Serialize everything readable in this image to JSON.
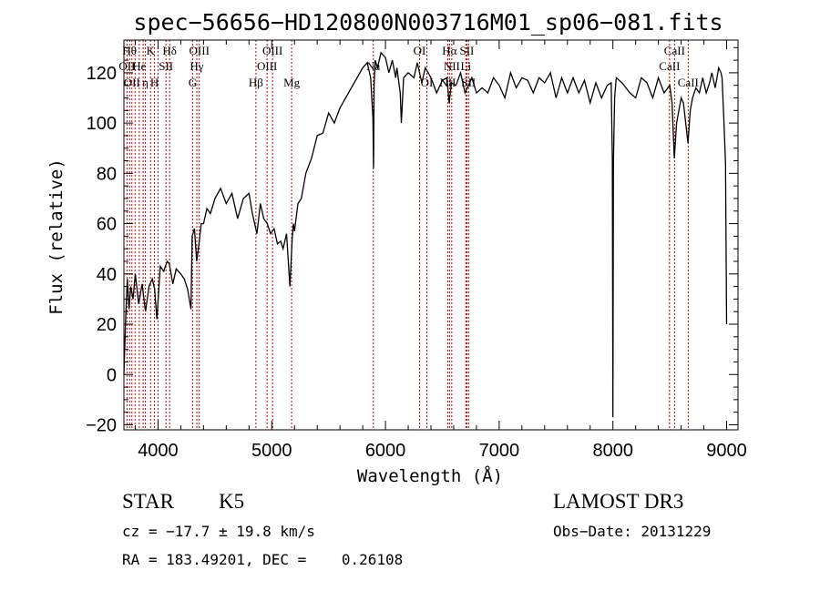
{
  "chart_data": {
    "type": "line",
    "title": "spec−56656−HD120800N003716M01_sp06−081.fits",
    "xlabel": "Wavelength (Å)",
    "ylabel": "Flux (relative)",
    "xlim": [
      3700,
      9100
    ],
    "ylim": [
      -22,
      133
    ],
    "xticks": [
      4000,
      5000,
      6000,
      7000,
      8000,
      9000
    ],
    "yticks": [
      -20,
      0,
      20,
      40,
      60,
      80,
      100,
      120
    ],
    "ytick_labels": [
      "−20",
      "0",
      "20",
      "40",
      "60",
      "80",
      "100",
      "120"
    ],
    "grid": false,
    "series": [
      {
        "color": "#000000",
        "x": [
          3700,
          3715,
          3730,
          3745,
          3760,
          3780,
          3800,
          3830,
          3860,
          3890,
          3920,
          3950,
          3970,
          3990,
          4020,
          4050,
          4080,
          4100,
          4130,
          4160,
          4200,
          4230,
          4260,
          4290,
          4300,
          4320,
          4340,
          4360,
          4380,
          4400,
          4430,
          4460,
          4500,
          4550,
          4600,
          4650,
          4700,
          4750,
          4800,
          4830,
          4850,
          4870,
          4900,
          4930,
          4960,
          4990,
          5020,
          5050,
          5080,
          5100,
          5130,
          5160,
          5180,
          5190,
          5200,
          5230,
          5260,
          5300,
          5350,
          5400,
          5450,
          5500,
          5550,
          5600,
          5650,
          5700,
          5750,
          5800,
          5840,
          5870,
          5890,
          5895,
          5900,
          5910,
          5930,
          5960,
          6000,
          6030,
          6060,
          6090,
          6100,
          6130,
          6140,
          6160,
          6200,
          6250,
          6280,
          6300,
          6320,
          6350,
          6400,
          6450,
          6500,
          6540,
          6560,
          6580,
          6620,
          6660,
          6700,
          6720,
          6760,
          6800,
          6850,
          6900,
          6950,
          7000,
          7050,
          7100,
          7150,
          7200,
          7250,
          7300,
          7350,
          7400,
          7450,
          7500,
          7550,
          7600,
          7650,
          7700,
          7750,
          7800,
          7850,
          7900,
          7950,
          7985,
          7995,
          8000,
          8005,
          8015,
          8030,
          8080,
          8150,
          8200,
          8250,
          8300,
          8350,
          8400,
          8450,
          8500,
          8520,
          8540,
          8560,
          8600,
          8620,
          8640,
          8660,
          8680,
          8700,
          8730,
          8760,
          8790,
          8820,
          8850,
          8870,
          8900,
          8930,
          8950,
          8960,
          8975,
          8990,
          9000
        ],
        "y": [
          0,
          22,
          38,
          26,
          35,
          30,
          40,
          28,
          36,
          25,
          35,
          38,
          34,
          22,
          43,
          41,
          45,
          44,
          36,
          42,
          40,
          38,
          34,
          26,
          55,
          58,
          45,
          52,
          60,
          60,
          66,
          64,
          70,
          74,
          68,
          72,
          62,
          70,
          72,
          64,
          60,
          56,
          68,
          62,
          60,
          56,
          58,
          52,
          53,
          50,
          56,
          35,
          54,
          60,
          57,
          68,
          70,
          80,
          86,
          95,
          96,
          104,
          100,
          106,
          110,
          114,
          118,
          122,
          124,
          118,
          102,
          82,
          115,
          125,
          122,
          128,
          126,
          120,
          125,
          118,
          122,
          112,
          100,
          118,
          120,
          118,
          124,
          120,
          116,
          122,
          118,
          112,
          117,
          118,
          108,
          116,
          115,
          120,
          112,
          114,
          118,
          112,
          114,
          112,
          118,
          115,
          110,
          120,
          114,
          118,
          117,
          112,
          118,
          116,
          120,
          110,
          118,
          112,
          118,
          112,
          117,
          108,
          116,
          110,
          115,
          116,
          85,
          -17,
          85,
          110,
          118,
          116,
          112,
          110,
          118,
          116,
          110,
          118,
          112,
          115,
          108,
          86,
          100,
          110,
          108,
          100,
          92,
          105,
          110,
          114,
          112,
          118,
          112,
          116,
          120,
          114,
          122,
          120,
          118,
          102,
          84,
          20
        ]
      }
    ],
    "line_markers": [
      {
        "x": 3727,
        "label": "OII",
        "row": 1
      },
      {
        "x": 3750,
        "label": "Hθ",
        "row": 0
      },
      {
        "x": 3770,
        "label": "OII",
        "row": 2
      },
      {
        "x": 3798,
        "label": "",
        "row": 0
      },
      {
        "x": 3835,
        "label": "He",
        "row": 1
      },
      {
        "x": 3869,
        "label": "",
        "row": 0
      },
      {
        "x": 3889,
        "label": "η",
        "row": 2
      },
      {
        "x": 3934,
        "label": "K",
        "row": 0
      },
      {
        "x": 3969,
        "label": "H",
        "row": 2
      },
      {
        "x": 4000,
        "label": "",
        "row": 0
      },
      {
        "x": 4070,
        "label": "SII",
        "row": 1
      },
      {
        "x": 4102,
        "label": "Hδ",
        "row": 0
      },
      {
        "x": 4304,
        "label": "G",
        "row": 2
      },
      {
        "x": 4341,
        "label": "Hγ",
        "row": 1
      },
      {
        "x": 4363,
        "label": "OIII",
        "row": 0
      },
      {
        "x": 4861,
        "label": "Hβ",
        "row": 2
      },
      {
        "x": 4959,
        "label": "OIII",
        "row": 1
      },
      {
        "x": 5007,
        "label": "OIII",
        "row": 0
      },
      {
        "x": 5175,
        "label": "Mg",
        "row": 2
      },
      {
        "x": 5893,
        "label": "Na",
        "row": 1
      },
      {
        "x": 6300,
        "label": "OI",
        "row": 0
      },
      {
        "x": 6364,
        "label": "OI",
        "row": 2
      },
      {
        "x": 6548,
        "label": "NII",
        "row": 2
      },
      {
        "x": 6563,
        "label": "Hα",
        "row": 0
      },
      {
        "x": 6583,
        "label": "NII",
        "row": 1
      },
      {
        "x": 6707,
        "label": "Li",
        "row": 1
      },
      {
        "x": 6716,
        "label": "SII",
        "row": 0
      },
      {
        "x": 6731,
        "label": "SII",
        "row": 2
      },
      {
        "x": 8498,
        "label": "CaII",
        "row": 1
      },
      {
        "x": 8542,
        "label": "CaII",
        "row": 0
      },
      {
        "x": 8662,
        "label": "CaII",
        "row": 2
      }
    ]
  },
  "info": {
    "object_class": "STAR",
    "subclass": "K5",
    "survey": "LAMOST DR3",
    "cz": "cz = −17.7 ± 19.8 km/s",
    "obs_date": "Obs−Date: 20131229",
    "radec": "RA = 183.49201, DEC =    0.26108"
  }
}
